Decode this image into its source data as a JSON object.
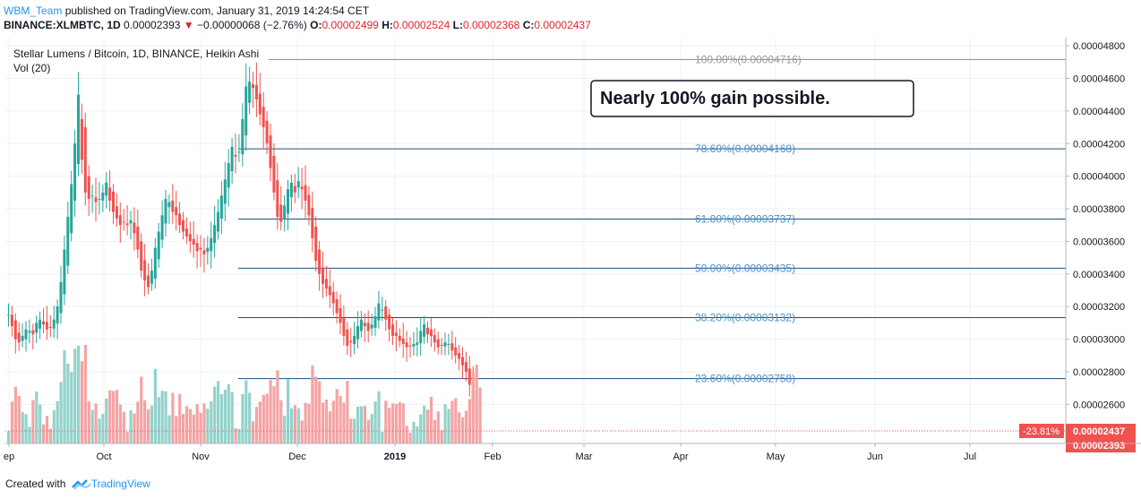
{
  "header": {
    "author": "WBM_Team",
    "published_text": "published on TradingView.com, January 31, 2019 14:24:54 CET",
    "symbol": "BINANCE:XLMBTC, 1D",
    "last_price": "0.00002393",
    "change": "−0.00000068 (−2.76%)",
    "o_label": "O:",
    "o_value": "0.00002499",
    "h_label": "H:",
    "h_value": "0.00002524",
    "l_label": "L:",
    "l_value": "0.00002368",
    "c_label": "C:",
    "c_value": "0.00002437"
  },
  "footer": {
    "created_with": "Created with",
    "brand": "TradingView"
  },
  "colors": {
    "up": "#26a69a",
    "down": "#ef5350",
    "vol_up": "#93d2cb",
    "vol_down": "#f4a4a4",
    "fib": "#1e4f7d",
    "fib_text": "#4a90c8"
  },
  "chart_data": {
    "type": "candlestick",
    "title": "Stellar Lumens / Bitcoin, 1D, BINANCE, Heikin Ashi",
    "volume_label": "Vol (20)",
    "annotation": "Nearly 100% gain possible.",
    "x_ticks": [
      "ep",
      "Oct",
      "Nov",
      "Dec",
      "2019",
      "Feb",
      "Mar",
      "Apr",
      "May",
      "Jun",
      "Jul"
    ],
    "y_ticks": [
      "0.00002600",
      "0.00002800",
      "0.00003000",
      "0.00003200",
      "0.00003400",
      "0.00003600",
      "0.00003800",
      "0.00004000",
      "0.00004200",
      "0.00004400",
      "0.00004600",
      "0.00004800"
    ],
    "ylim": [
      2.36e-05,
      4.85e-05
    ],
    "fib_levels": [
      {
        "label": "100.00%(0.00004716)",
        "value": 4.716e-05
      },
      {
        "label": "78.60%(0.00004168)",
        "value": 4.168e-05
      },
      {
        "label": "61.80%(0.00003737)",
        "value": 3.737e-05
      },
      {
        "label": "50.00%(0.00003435)",
        "value": 3.435e-05
      },
      {
        "label": "38.20%(0.00003132)",
        "value": 3.132e-05
      },
      {
        "label": "23.60%(0.00002758)",
        "value": 2.758e-05
      }
    ],
    "price_markers": [
      {
        "label": "0.00002437",
        "value": 2.437e-05
      },
      {
        "label": "0.00002393",
        "value": 2.393e-05
      }
    ],
    "pct_badge": "-23.81%",
    "close_series": [
      3.15,
      3.08,
      3.0,
      2.98,
      3.02,
      3.06,
      3.05,
      3.03,
      3.1,
      3.12,
      3.09,
      3.06,
      3.07,
      3.12,
      3.2,
      3.35,
      3.55,
      3.75,
      3.95,
      4.2,
      4.5,
      4.1,
      3.9,
      3.86,
      3.88,
      3.84,
      3.86,
      3.9,
      3.96,
      3.85,
      3.78,
      3.74,
      3.7,
      3.72,
      3.7,
      3.73,
      3.65,
      3.55,
      3.42,
      3.36,
      3.32,
      3.42,
      3.56,
      3.66,
      3.76,
      3.86,
      3.84,
      3.78,
      3.76,
      3.7,
      3.66,
      3.63,
      3.6,
      3.58,
      3.54,
      3.55,
      3.52,
      3.56,
      3.62,
      3.7,
      3.78,
      3.88,
      3.98,
      4.08,
      4.18,
      4.12,
      4.15,
      4.35,
      4.55,
      4.58,
      4.54,
      4.47,
      4.38,
      4.3,
      4.2,
      4.05,
      3.9,
      3.75,
      3.72,
      3.82,
      3.92,
      3.96,
      3.9,
      3.97,
      3.92,
      3.85,
      3.76,
      3.62,
      3.48,
      3.4,
      3.34,
      3.31,
      3.27,
      3.22,
      3.16,
      3.1,
      3.02,
      2.96,
      2.98,
      3.02,
      3.08,
      3.12,
      3.08,
      3.05,
      3.09,
      3.14,
      3.22,
      3.18,
      3.12,
      3.06,
      3.02,
      3.02,
      2.99,
      2.97,
      2.95,
      2.96,
      2.97,
      2.98,
      3.05,
      3.09,
      3.03,
      3.02,
      2.98,
      2.95,
      2.96,
      2.98,
      2.97,
      2.93,
      2.9,
      2.88,
      2.84,
      2.8,
      2.72,
      2.6,
      2.48,
      2.437
    ]
  }
}
